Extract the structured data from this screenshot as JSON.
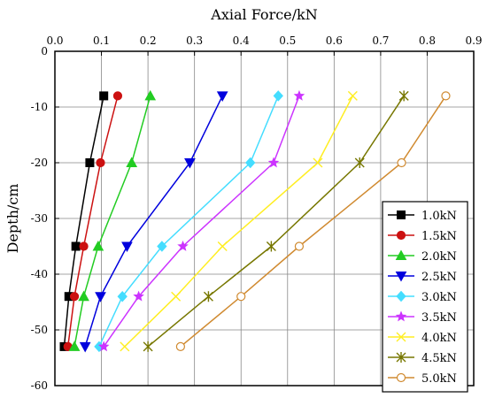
{
  "chart_data": {
    "type": "line",
    "title": "",
    "xlabel": "Axial Force/kN",
    "ylabel": "Depth/cm",
    "x_axis_position": "top",
    "xlim": [
      0,
      0.9
    ],
    "ylim": [
      -60,
      0
    ],
    "xticks": [
      0,
      0.1,
      0.2,
      0.3,
      0.4,
      0.5,
      0.6,
      0.7,
      0.8,
      0.9
    ],
    "xtick_labels": [
      "0.0",
      "0.1",
      "0.2",
      "0.3",
      "0.4",
      "0.5",
      "0.6",
      "0.7",
      "0.8",
      "0.9"
    ],
    "yticks": [
      0,
      -10,
      -20,
      -30,
      -40,
      -50,
      -60
    ],
    "ytick_labels": [
      "0",
      "-10",
      "-20",
      "-30",
      "-40",
      "-50",
      "-60"
    ],
    "grid": true,
    "legend_position": "right-bottom",
    "depths": [
      -8,
      -20,
      -35,
      -44,
      -53
    ],
    "series": [
      {
        "name": "1.0kN",
        "color": "#000000",
        "marker": "square",
        "filled": true,
        "x": [
          0.105,
          0.075,
          0.045,
          0.03,
          0.02
        ]
      },
      {
        "name": "1.5kN",
        "color": "#cc1111",
        "marker": "circle",
        "filled": true,
        "x": [
          0.135,
          0.098,
          0.062,
          0.042,
          0.028
        ]
      },
      {
        "name": "2.0kN",
        "color": "#22cc22",
        "marker": "triangle-up",
        "filled": true,
        "x": [
          0.205,
          0.165,
          0.093,
          0.062,
          0.042
        ]
      },
      {
        "name": "2.5kN",
        "color": "#0000dd",
        "marker": "triangle-down",
        "filled": true,
        "x": [
          0.36,
          0.29,
          0.155,
          0.098,
          0.065
        ]
      },
      {
        "name": "3.0kN",
        "color": "#44ddff",
        "marker": "diamond",
        "filled": true,
        "x": [
          0.48,
          0.42,
          0.23,
          0.145,
          0.095
        ]
      },
      {
        "name": "3.5kN",
        "color": "#cc33ff",
        "marker": "star",
        "filled": true,
        "x": [
          0.525,
          0.47,
          0.275,
          0.18,
          0.105
        ]
      },
      {
        "name": "4.0kN",
        "color": "#ffee22",
        "marker": "x",
        "filled": false,
        "x": [
          0.64,
          0.565,
          0.36,
          0.26,
          0.15
        ]
      },
      {
        "name": "4.5kN",
        "color": "#777700",
        "marker": "asterisk",
        "filled": false,
        "x": [
          0.75,
          0.655,
          0.465,
          0.33,
          0.2
        ]
      },
      {
        "name": "5.0kN",
        "color": "#d08a30",
        "marker": "circle",
        "filled": false,
        "x": [
          0.84,
          0.745,
          0.525,
          0.4,
          0.27
        ]
      }
    ]
  }
}
